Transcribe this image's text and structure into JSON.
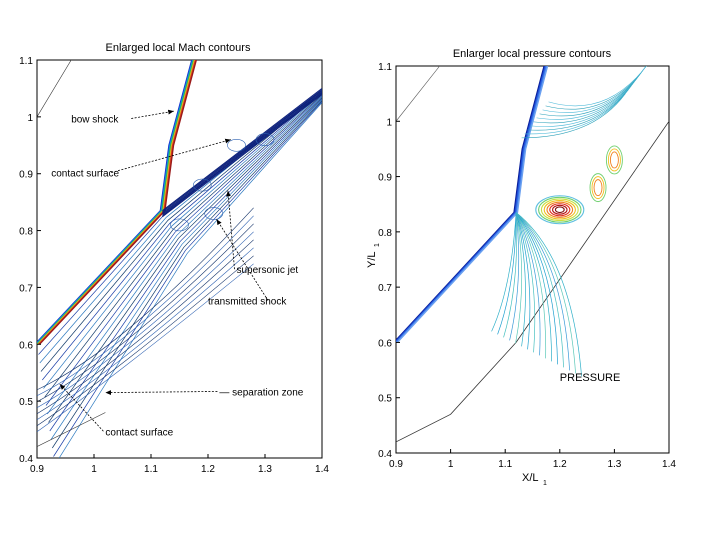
{
  "chart_data": [
    {
      "type": "contour",
      "title": "Enlarged local Mach contours",
      "xlabel": "",
      "ylabel": "",
      "xlim": [
        0.9,
        1.4
      ],
      "ylim": [
        0.4,
        1.1
      ],
      "xticks": [
        "0.9",
        "1",
        "1.1",
        "1.2",
        "1.3",
        "1.4"
      ],
      "yticks": [
        "0.4",
        "0.5",
        "0.6",
        "0.7",
        "0.8",
        "0.9",
        "1",
        "1.1"
      ],
      "shock_line": [
        [
          0.9,
          0.6
        ],
        [
          1.12,
          0.835
        ],
        [
          1.135,
          0.95
        ],
        [
          1.175,
          1.1
        ]
      ],
      "wall_line": [
        [
          1.12,
          0.835
        ],
        [
          1.4,
          1.05
        ]
      ],
      "annotations": [
        {
          "text": "bow shock",
          "x": 0.96,
          "y": 0.99,
          "arrow_to": [
            1.14,
            1.01
          ]
        },
        {
          "text": "contact surface",
          "x": 0.925,
          "y": 0.895,
          "arrow_to": [
            1.24,
            0.96
          ]
        },
        {
          "text": "supersonic jet",
          "x": 1.25,
          "y": 0.725,
          "arrow_to": [
            1.235,
            0.87
          ]
        },
        {
          "text": "transmitted shock",
          "x": 1.2,
          "y": 0.67,
          "arrow_to": [
            1.215,
            0.82
          ]
        },
        {
          "text": "— separation zone",
          "x": 1.22,
          "y": 0.51,
          "arrow_to": [
            1.02,
            0.515
          ]
        },
        {
          "text": "contact surface",
          "x": 1.02,
          "y": 0.44,
          "arrow_to": [
            0.94,
            0.53
          ]
        }
      ]
    },
    {
      "type": "contour",
      "title": "Enlarger local pressure contours",
      "xlabel": "X/L",
      "xlabel_sub": "1",
      "ylabel": "Y/L",
      "ylabel_sub": "1",
      "xlim": [
        0.9,
        1.4
      ],
      "ylim": [
        0.4,
        1.1
      ],
      "xticks": [
        "0.9",
        "1",
        "1.1",
        "1.2",
        "1.3",
        "1.4"
      ],
      "yticks": [
        "0.4",
        "0.5",
        "0.6",
        "0.7",
        "0.8",
        "0.9",
        "1",
        "1.1"
      ],
      "shock_line": [
        [
          0.9,
          0.6
        ],
        [
          1.12,
          0.835
        ],
        [
          1.135,
          0.95
        ],
        [
          1.175,
          1.1
        ]
      ],
      "wall_line": [
        [
          0.9,
          0.42
        ],
        [
          1.0,
          0.47
        ],
        [
          1.12,
          0.6
        ],
        [
          1.4,
          1.0
        ]
      ],
      "high_pressure_spot": [
        1.2,
        0.84
      ],
      "annotations": [
        {
          "text": "PRESSURE",
          "x": 1.2,
          "y": 0.53
        }
      ]
    }
  ]
}
